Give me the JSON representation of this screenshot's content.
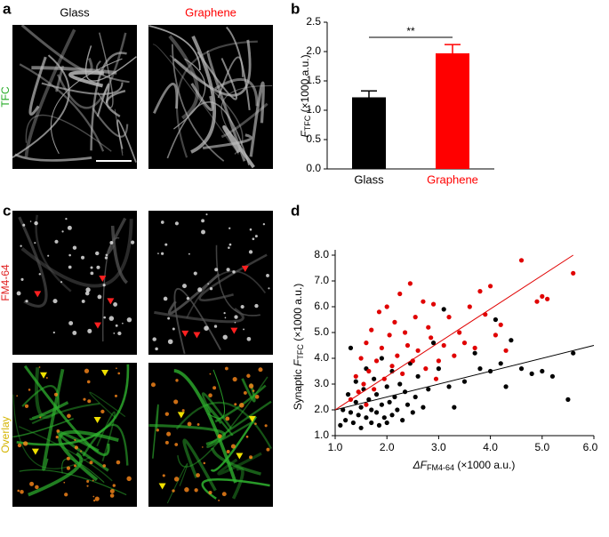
{
  "panel_labels": [
    "a",
    "b",
    "c",
    "d"
  ],
  "image_columns": [
    "Glass",
    "Graphene"
  ],
  "image_rows": [
    "TFC",
    "FM4-64",
    "Overlay"
  ],
  "chart_data": [
    {
      "type": "bar",
      "categories": [
        "Glass",
        "Graphene"
      ],
      "values": [
        1.22,
        1.97
      ],
      "errors": [
        0.11,
        0.15
      ],
      "colors": [
        "#000000",
        "#ff0000"
      ],
      "ylabel": [
        "F",
        "TFC",
        " (×1000 a.u.)"
      ],
      "significance": "**",
      "ylim": [
        0,
        2.5
      ],
      "yticks": [
        {
          "value": 0,
          "label": "0.0"
        },
        0.5,
        {
          "value": 1,
          "label": "1.0"
        },
        1.5,
        {
          "value": 2,
          "label": "2.0"
        },
        2.5
      ]
    },
    {
      "type": "scatter",
      "xlabel": [
        "ΔF",
        "FM4-64",
        " (×1000 a.u.)"
      ],
      "ylabel": [
        "Synaptic ",
        "F",
        "TFC",
        " (×1000 a.u.)"
      ],
      "xlim": [
        1.0,
        6.0
      ],
      "xticks": [
        {
          "value": 1,
          "label": "1.0"
        },
        {
          "value": 2,
          "label": "2.0"
        },
        {
          "value": 3,
          "label": "3.0"
        },
        {
          "value": 4,
          "label": "4.0"
        },
        {
          "value": 5,
          "label": "5.0"
        },
        {
          "value": 6,
          "label": "6.0"
        }
      ],
      "ylim": [
        1.0,
        8.0
      ],
      "yticks": [
        {
          "value": 1,
          "label": "1.0"
        },
        {
          "value": 2,
          "label": "2.0"
        },
        {
          "value": 3,
          "label": "3.0"
        },
        {
          "value": 4,
          "label": "4.0"
        },
        {
          "value": 5,
          "label": "5.0"
        },
        {
          "value": 6,
          "label": "6.0"
        },
        {
          "value": 7,
          "label": "7.0"
        },
        {
          "value": 8,
          "label": "8.0"
        }
      ],
      "series": [
        {
          "color": "#000000",
          "x": [
            1.1,
            1.15,
            1.2,
            1.25,
            1.3,
            1.3,
            1.35,
            1.4,
            1.4,
            1.45,
            1.5,
            1.5,
            1.55,
            1.6,
            1.6,
            1.65,
            1.7,
            1.7,
            1.75,
            1.8,
            1.8,
            1.85,
            1.9,
            1.9,
            1.95,
            2.0,
            2.0,
            2.05,
            2.1,
            2.1,
            2.15,
            2.2,
            2.25,
            2.3,
            2.35,
            2.4,
            2.45,
            2.5,
            2.55,
            2.6,
            2.7,
            2.8,
            2.9,
            3.0,
            3.1,
            3.2,
            3.3,
            3.5,
            3.7,
            3.8,
            4.0,
            4.1,
            4.2,
            4.3,
            4.6,
            4.8,
            5.0,
            5.2,
            5.5,
            5.6,
            4.4
          ],
          "y": [
            1.4,
            2.0,
            1.6,
            2.6,
            1.9,
            4.4,
            1.5,
            2.3,
            3.1,
            1.8,
            2.1,
            1.3,
            2.8,
            1.7,
            3.6,
            2.4,
            1.5,
            2.0,
            3.2,
            1.9,
            2.6,
            1.4,
            2.2,
            4.0,
            1.7,
            2.9,
            1.5,
            2.3,
            3.5,
            1.8,
            2.5,
            2.0,
            3.0,
            1.6,
            2.7,
            2.2,
            3.8,
            1.9,
            2.5,
            3.3,
            2.1,
            2.8,
            4.6,
            3.6,
            5.9,
            2.9,
            2.1,
            3.1,
            4.2,
            3.6,
            3.5,
            5.5,
            3.8,
            2.9,
            3.6,
            3.4,
            3.5,
            3.3,
            2.4,
            4.2,
            4.7
          ]
        },
        {
          "color": "#e00000",
          "x": [
            1.3,
            1.4,
            1.45,
            1.5,
            1.55,
            1.6,
            1.65,
            1.7,
            1.75,
            1.8,
            1.85,
            1.9,
            1.95,
            2.0,
            2.05,
            2.1,
            2.15,
            2.2,
            2.25,
            2.3,
            2.35,
            2.4,
            2.45,
            2.5,
            2.55,
            2.6,
            2.7,
            2.75,
            2.8,
            2.85,
            2.9,
            3.0,
            3.1,
            3.2,
            3.3,
            3.4,
            3.5,
            3.6,
            3.7,
            3.8,
            3.9,
            4.0,
            4.1,
            4.2,
            4.3,
            4.6,
            4.9,
            5.0,
            5.1,
            5.6,
            2.95,
            1.6
          ],
          "y": [
            2.4,
            3.3,
            2.7,
            4.0,
            3.0,
            4.6,
            3.5,
            5.1,
            2.8,
            3.9,
            5.8,
            4.4,
            3.2,
            6.0,
            4.9,
            3.7,
            5.4,
            4.1,
            6.5,
            3.4,
            5.0,
            4.5,
            6.9,
            3.9,
            5.6,
            4.3,
            6.2,
            3.6,
            5.2,
            4.8,
            6.1,
            3.9,
            4.5,
            5.6,
            4.1,
            5.0,
            4.6,
            6.0,
            4.4,
            6.6,
            5.7,
            6.8,
            4.9,
            5.3,
            4.3,
            7.8,
            6.2,
            6.4,
            6.3,
            7.3,
            3.2,
            2.2
          ]
        }
      ],
      "fit_lines": [
        {
          "color": "#000000",
          "x": [
            1.0,
            6.0
          ],
          "y": [
            2.0,
            4.5
          ]
        },
        {
          "color": "#e00000",
          "x": [
            1.0,
            5.6
          ],
          "y": [
            2.0,
            8.0
          ]
        }
      ]
    }
  ]
}
